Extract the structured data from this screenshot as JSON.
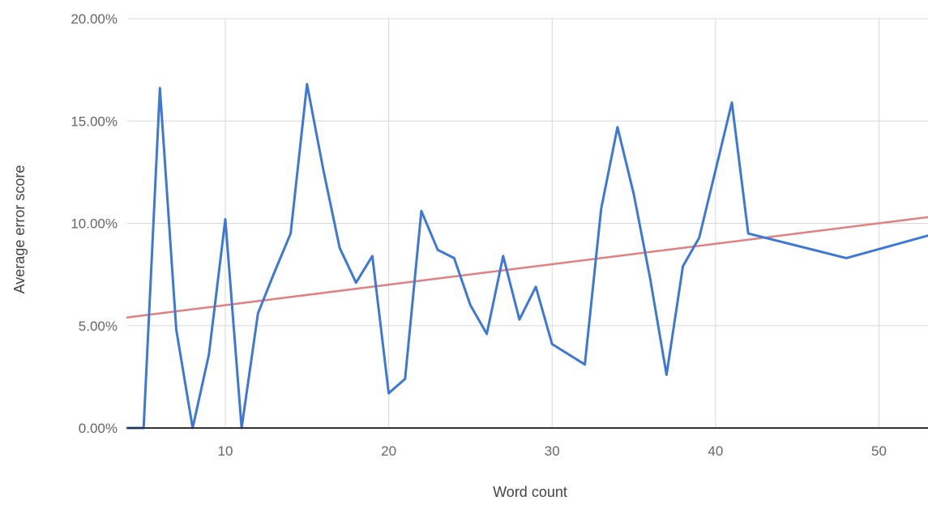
{
  "chart_data": {
    "type": "line",
    "title": "",
    "xlabel": "Word count",
    "ylabel": "Average error score",
    "xlim": [
      4,
      53
    ],
    "ylim": [
      0,
      20
    ],
    "x_ticks": [
      10,
      20,
      30,
      40,
      50
    ],
    "y_ticks": [
      0,
      5,
      10,
      15,
      20
    ],
    "y_tick_labels": [
      "0.00%",
      "5.00%",
      "10.00%",
      "15.00%",
      "20.00%"
    ],
    "grid": true,
    "legend": "none",
    "series": [
      {
        "color": "#3d78d8",
        "x": [
          4,
          5,
          6,
          7,
          8,
          9,
          10,
          11,
          12,
          13,
          14,
          15,
          16,
          17,
          18,
          19,
          20,
          21,
          22,
          23,
          24,
          25,
          26,
          27,
          28,
          29,
          30,
          32,
          33,
          34,
          35,
          36,
          37,
          38,
          39,
          40,
          41,
          42,
          48,
          53
        ],
        "y": [
          0,
          0,
          16.6,
          4.8,
          0,
          3.6,
          10.2,
          0,
          5.6,
          7.6,
          9.5,
          16.8,
          12.6,
          8.8,
          7.1,
          8.4,
          1.7,
          2.4,
          10.6,
          8.7,
          8.3,
          6.0,
          4.6,
          8.4,
          5.3,
          6.9,
          4.1,
          3.1,
          10.7,
          14.7,
          11.4,
          7.3,
          2.6,
          7.9,
          9.3,
          12.6,
          15.9,
          9.5,
          8.3,
          9.4
        ]
      },
      {
        "color": "#e08080",
        "x": [
          4,
          53
        ],
        "y": [
          5.4,
          10.3
        ]
      }
    ]
  }
}
